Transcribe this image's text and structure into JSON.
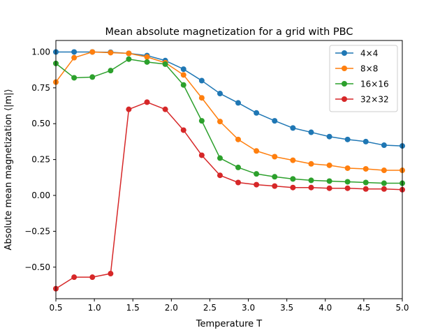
{
  "chart_data": {
    "type": "line",
    "title": "Mean absolute magnetization for a grid with PBC",
    "xlabel": "Temperature T",
    "ylabel": "Absolute mean magnetization ⟨|m|⟩",
    "xlim": [
      0.5,
      5.0
    ],
    "ylim": [
      -0.72,
      1.08
    ],
    "xticks": [
      0.5,
      1.0,
      1.5,
      2.0,
      2.5,
      3.0,
      3.5,
      4.0,
      4.5,
      5.0
    ],
    "xtick_labels": [
      "0.5",
      "1.0",
      "1.5",
      "2.0",
      "2.5",
      "3.0",
      "3.5",
      "4.0",
      "4.5",
      "5.0"
    ],
    "yticks": [
      -0.5,
      -0.25,
      0.0,
      0.25,
      0.5,
      0.75,
      1.0
    ],
    "ytick_labels": [
      "−0.50",
      "−0.25",
      "0.00",
      "0.25",
      "0.50",
      "0.75",
      "1.00"
    ],
    "grid": false,
    "legend_position": "top-right",
    "x": [
      0.5,
      0.737,
      0.974,
      1.211,
      1.447,
      1.684,
      1.921,
      2.158,
      2.395,
      2.632,
      2.868,
      3.105,
      3.342,
      3.579,
      3.816,
      4.053,
      4.289,
      4.526,
      4.763,
      5.0
    ],
    "series": [
      {
        "name": "4×4",
        "color": "#1f77b4",
        "values": [
          1.0,
          1.0,
          1.0,
          0.998,
          0.99,
          0.975,
          0.94,
          0.88,
          0.8,
          0.71,
          0.645,
          0.575,
          0.52,
          0.47,
          0.44,
          0.41,
          0.39,
          0.375,
          0.35,
          0.345
        ]
      },
      {
        "name": "8×8",
        "color": "#ff7f0e",
        "values": [
          0.79,
          0.96,
          1.0,
          0.995,
          0.99,
          0.965,
          0.925,
          0.84,
          0.68,
          0.515,
          0.39,
          0.31,
          0.27,
          0.245,
          0.22,
          0.21,
          0.19,
          0.185,
          0.175,
          0.175
        ]
      },
      {
        "name": "16×16",
        "color": "#2ca02c",
        "values": [
          0.92,
          0.82,
          0.825,
          0.87,
          0.95,
          0.93,
          0.915,
          0.77,
          0.52,
          0.26,
          0.195,
          0.15,
          0.13,
          0.115,
          0.105,
          0.1,
          0.095,
          0.09,
          0.085,
          0.085
        ]
      },
      {
        "name": "32×32",
        "color": "#d62728",
        "values": [
          -0.65,
          -0.57,
          -0.57,
          -0.545,
          0.6,
          0.65,
          0.6,
          0.455,
          0.28,
          0.14,
          0.09,
          0.075,
          0.065,
          0.055,
          0.055,
          0.05,
          0.05,
          0.045,
          0.045,
          0.04
        ]
      }
    ]
  }
}
